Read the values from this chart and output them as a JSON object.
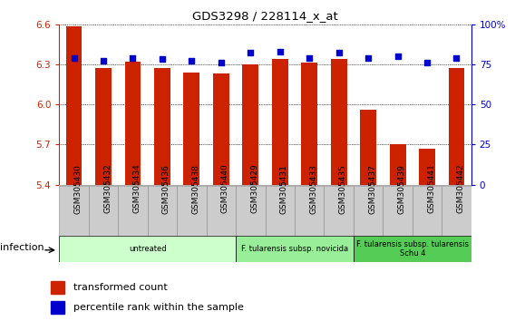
{
  "title": "GDS3298 / 228114_x_at",
  "samples": [
    "GSM305430",
    "GSM305432",
    "GSM305434",
    "GSM305436",
    "GSM305438",
    "GSM305440",
    "GSM305429",
    "GSM305431",
    "GSM305433",
    "GSM305435",
    "GSM305437",
    "GSM305439",
    "GSM305441",
    "GSM305442"
  ],
  "red_values": [
    6.58,
    6.27,
    6.32,
    6.27,
    6.24,
    6.23,
    6.3,
    6.34,
    6.31,
    6.34,
    5.96,
    5.7,
    5.67,
    6.27
  ],
  "blue_values": [
    79,
    77,
    79,
    78,
    77,
    76,
    82,
    83,
    79,
    82,
    79,
    80,
    76,
    79
  ],
  "ylim_left": [
    5.4,
    6.6
  ],
  "ylim_right": [
    0,
    100
  ],
  "yticks_left": [
    5.4,
    5.7,
    6.0,
    6.3,
    6.6
  ],
  "yticks_right": [
    0,
    25,
    50,
    75,
    100
  ],
  "bar_color": "#cc2200",
  "dot_color": "#0000cc",
  "groups": [
    {
      "label": "untreated",
      "start": 0,
      "end": 6,
      "color": "#ccffcc"
    },
    {
      "label": "F. tularensis subsp. novicida",
      "start": 6,
      "end": 10,
      "color": "#99ee99"
    },
    {
      "label": "F. tularensis subsp. tularensis\nSchu 4",
      "start": 10,
      "end": 14,
      "color": "#55cc55"
    }
  ],
  "xlabel_infection": "infection",
  "legend_red": "transformed count",
  "legend_blue": "percentile rank within the sample",
  "grid_color": "#000000",
  "bar_width": 0.55,
  "n_samples": 14,
  "xtick_bg": "#cccccc",
  "xtick_edge": "#888888"
}
